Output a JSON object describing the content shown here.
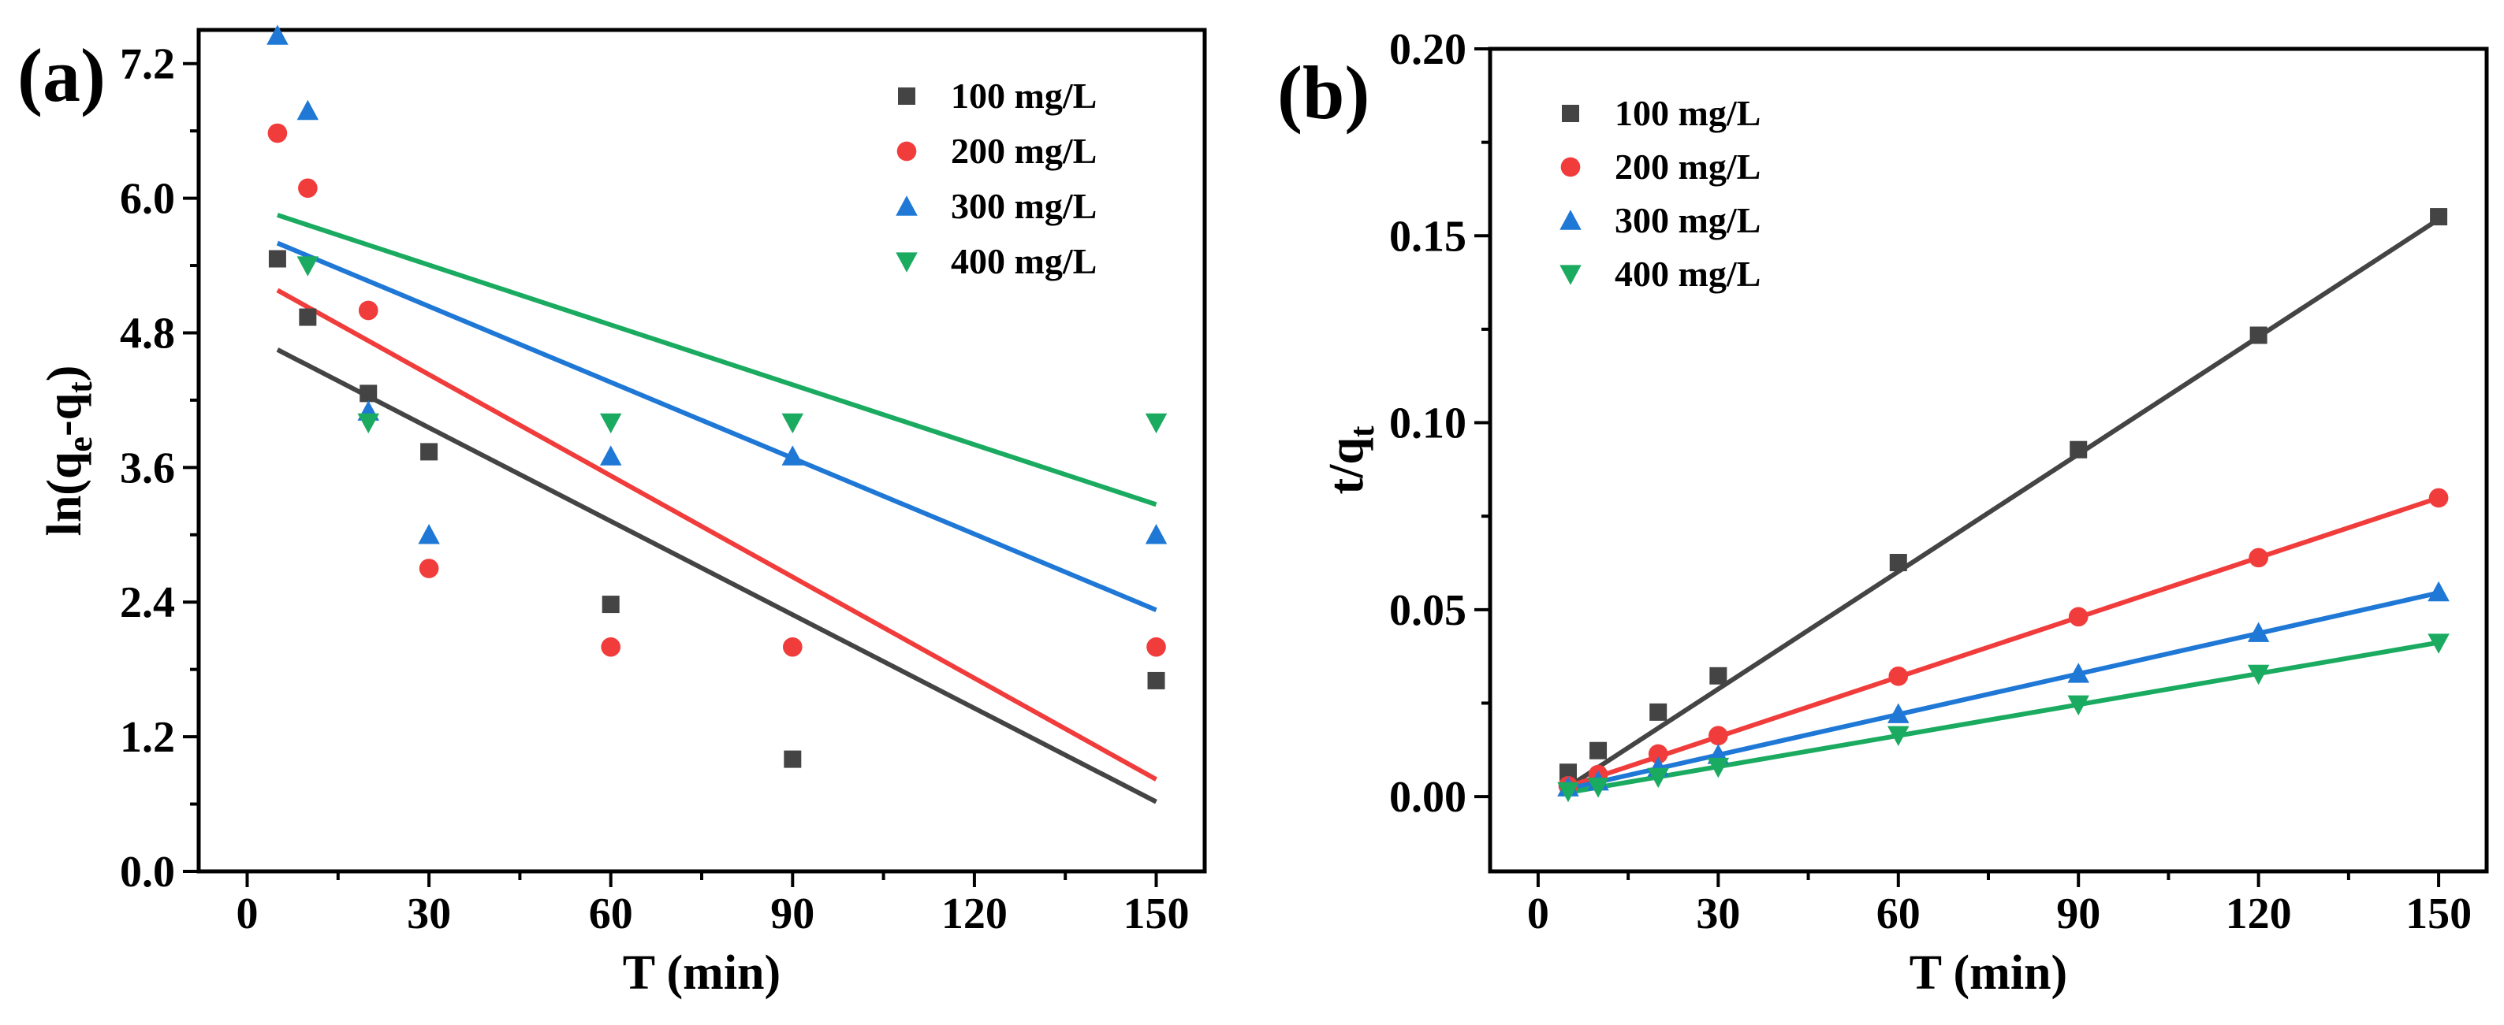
{
  "chart_data": [
    {
      "type": "scatter",
      "panel_label": "(a)",
      "title": "",
      "xlabel": "T (min)",
      "ylabel": "ln(qe-qt)",
      "ylabel_parts": {
        "base": "ln(q",
        "sub1": "e",
        "mid": "-q",
        "sub2": "t",
        "end": ")"
      },
      "xlim": [
        -8,
        158
      ],
      "ylim": [
        0,
        7.5
      ],
      "xticks": [
        0,
        30,
        60,
        90,
        120,
        150
      ],
      "xtick_labels": [
        "0",
        "30",
        "60",
        "90",
        "120",
        "150"
      ],
      "yticks": [
        0.0,
        1.2,
        2.4,
        3.6,
        4.8,
        6.0,
        7.2
      ],
      "ytick_labels": [
        "0.0",
        "1.2",
        "2.4",
        "3.6",
        "4.8",
        "6.0",
        "7.2"
      ],
      "grid": false,
      "legend_position": "top-right",
      "series": [
        {
          "name": "100 mg/L",
          "marker": "square",
          "color": "#444444",
          "x": [
            5,
            10,
            20,
            30,
            60,
            90,
            150
          ],
          "y": [
            5.46,
            4.94,
            4.26,
            3.74,
            2.38,
            1.0,
            1.7
          ],
          "fit_line": {
            "x": [
              5,
              150
            ],
            "y": [
              4.65,
              0.62
            ]
          }
        },
        {
          "name": "200 mg/L",
          "marker": "circle",
          "color": "#f13c3c",
          "x": [
            5,
            10,
            20,
            30,
            60,
            90,
            150
          ],
          "y": [
            6.58,
            6.09,
            5.0,
            2.7,
            2.0,
            2.0,
            2.0
          ],
          "fit_line": {
            "x": [
              5,
              150
            ],
            "y": [
              5.18,
              0.82
            ]
          }
        },
        {
          "name": "300 mg/L",
          "marker": "triangle-up",
          "color": "#1f78d6",
          "x": [
            5,
            10,
            20,
            30,
            60,
            90,
            150
          ],
          "y": [
            7.45,
            6.78,
            4.1,
            3.0,
            3.7,
            3.7,
            3.0
          ],
          "fit_line": {
            "x": [
              5,
              150
            ],
            "y": [
              5.6,
              2.33
            ]
          }
        },
        {
          "name": "400 mg/L",
          "marker": "triangle-down",
          "color": "#1aab60",
          "x": [
            10,
            20,
            60,
            90,
            150
          ],
          "y": [
            5.4,
            4.0,
            4.0,
            4.0,
            4.0
          ],
          "fit_line": {
            "x": [
              5,
              150
            ],
            "y": [
              5.85,
              3.27
            ]
          }
        }
      ]
    },
    {
      "type": "scatter",
      "panel_label": "(b)",
      "title": "",
      "xlabel": "T (min)",
      "ylabel": "t/qt",
      "ylabel_parts": {
        "base": "t/q",
        "sub1": "t"
      },
      "xlim": [
        -8,
        158
      ],
      "ylim": [
        -0.02,
        0.2
      ],
      "xticks": [
        0,
        30,
        60,
        90,
        120,
        150
      ],
      "xtick_labels": [
        "0",
        "30",
        "60",
        "90",
        "120",
        "150"
      ],
      "yticks": [
        0.0,
        0.05,
        0.1,
        0.15,
        0.2
      ],
      "ytick_labels": [
        "0.00",
        "0.05",
        "0.10",
        "0.15",
        "0.20"
      ],
      "grid": false,
      "legend_position": "top-left",
      "series": [
        {
          "name": "100 mg/L",
          "marker": "square",
          "color": "#444444",
          "x": [
            5,
            10,
            20,
            30,
            60,
            90,
            120,
            150
          ],
          "y": [
            0.0065,
            0.0123,
            0.0226,
            0.0323,
            0.0626,
            0.0928,
            0.1234,
            0.1551
          ],
          "fit_line": {
            "x": [
              5,
              150
            ],
            "y": [
              0.0026,
              0.1544
            ]
          }
        },
        {
          "name": "200 mg/L",
          "marker": "circle",
          "color": "#f13c3c",
          "x": [
            5,
            10,
            20,
            30,
            60,
            90,
            120,
            150
          ],
          "y": [
            0.0029,
            0.0059,
            0.0114,
            0.0163,
            0.0322,
            0.0481,
            0.0639,
            0.0799
          ],
          "fit_line": {
            "x": [
              5,
              150
            ],
            "y": [
              0.0027,
              0.0799
            ]
          }
        },
        {
          "name": "300 mg/L",
          "marker": "triangle-up",
          "color": "#1f78d6",
          "x": [
            5,
            10,
            20,
            30,
            60,
            90,
            120,
            150
          ],
          "y": [
            0.0025,
            0.0041,
            0.0078,
            0.0112,
            0.0221,
            0.0329,
            0.0438,
            0.0547
          ],
          "fit_line": {
            "x": [
              5,
              150
            ],
            "y": [
              0.0021,
              0.0545
            ]
          }
        },
        {
          "name": "400 mg/L",
          "marker": "triangle-down",
          "color": "#1aab60",
          "x": [
            5,
            10,
            20,
            30,
            60,
            90,
            120,
            150
          ],
          "y": [
            0.0014,
            0.0026,
            0.0052,
            0.0079,
            0.0164,
            0.0246,
            0.0328,
            0.0411
          ],
          "fit_line": {
            "x": [
              5,
              150
            ],
            "y": [
              0.0011,
              0.0412
            ]
          }
        }
      ]
    }
  ]
}
